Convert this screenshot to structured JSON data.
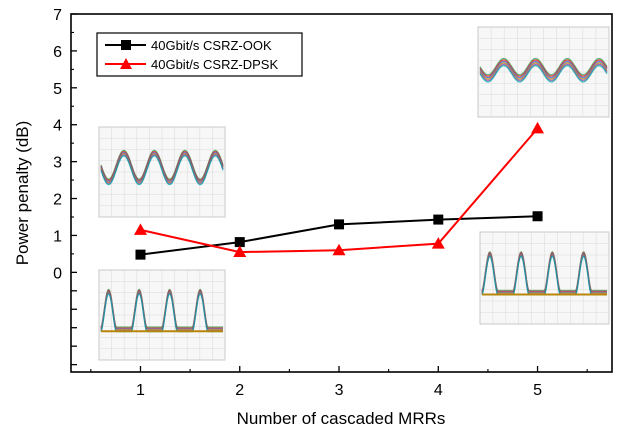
{
  "chart_data": {
    "type": "line",
    "xlabel": "Number of cascaded MRRs",
    "ylabel": "Power penalty (dB)",
    "x": [
      1,
      2,
      3,
      4,
      5
    ],
    "xlim": [
      0.3,
      5.75
    ],
    "ylim": [
      -2.7,
      7
    ],
    "x_ticks": [
      1,
      2,
      3,
      4,
      5
    ],
    "y_ticks_labeled": [
      0,
      1,
      2,
      3,
      4,
      5,
      6,
      7
    ],
    "y_ticks_unlabeled": [
      -0.5,
      -1,
      -1.5,
      -2,
      -2.5
    ],
    "grid": false,
    "legend_position": "top-left",
    "series": [
      {
        "name": "40Gbit/s CSRZ-OOK",
        "values": [
          0.48,
          0.82,
          1.3,
          1.43,
          1.52
        ],
        "color": "#000000",
        "marker": "square"
      },
      {
        "name": "40Gbit/s CSRZ-DPSK",
        "values": [
          1.15,
          0.55,
          0.6,
          0.78,
          3.9
        ],
        "color": "#ff0000",
        "marker": "triangle"
      }
    ],
    "inset_eye_diagrams": [
      {
        "id": "inset-top-left",
        "pattern": "sine"
      },
      {
        "id": "inset-bottom-left",
        "pattern": "pulses"
      },
      {
        "id": "inset-top-right",
        "pattern": "sine-noisy"
      },
      {
        "id": "inset-bottom-right",
        "pattern": "pulses"
      }
    ]
  }
}
